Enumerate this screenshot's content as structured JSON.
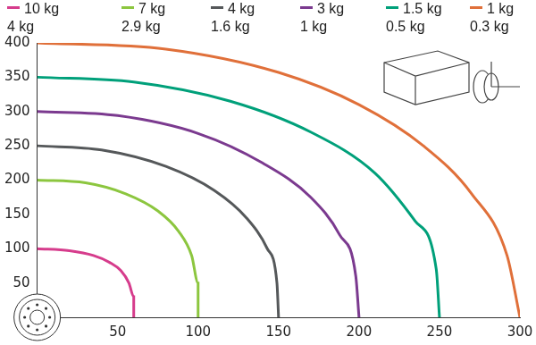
{
  "chart_data": {
    "type": "line",
    "xlim": [
      0,
      300
    ],
    "xticks": [
      50,
      100,
      150,
      200,
      250,
      300
    ],
    "ylim": [
      0,
      400
    ],
    "yticks": [
      50,
      100,
      150,
      200,
      250,
      300,
      350,
      400
    ],
    "grid": false,
    "legend": "top",
    "series": [
      {
        "name": "10 kg",
        "subname": "4 kg",
        "color": "#d63c8c",
        "x": [
          0,
          20,
          35,
          45,
          52,
          57,
          60,
          60
        ],
        "values": [
          100,
          97,
          90,
          80,
          68,
          50,
          30,
          0
        ]
      },
      {
        "name": "7 kg",
        "subname": "2.9 kg",
        "color": "#8cc63f",
        "x": [
          0,
          30,
          55,
          75,
          88,
          96,
          100,
          100
        ],
        "values": [
          200,
          196,
          180,
          155,
          125,
          90,
          50,
          0
        ]
      },
      {
        "name": "4 kg",
        "subname": "1.6 kg",
        "color": "#55585a",
        "x": [
          0,
          40,
          80,
          110,
          130,
          143,
          149,
          150
        ],
        "values": [
          250,
          244,
          220,
          185,
          145,
          100,
          50,
          0
        ]
      },
      {
        "name": "3 kg",
        "subname": "1 kg",
        "color": "#7b3a8f",
        "x": [
          0,
          50,
          100,
          140,
          170,
          188,
          198,
          200
        ],
        "values": [
          300,
          294,
          268,
          225,
          175,
          120,
          60,
          0
        ]
      },
      {
        "name": "1.5 kg",
        "subname": "0.5 kg",
        "color": "#00a07a",
        "x": [
          0,
          60,
          120,
          170,
          210,
          235,
          248,
          250
        ],
        "values": [
          350,
          343,
          315,
          270,
          210,
          140,
          70,
          0
        ]
      },
      {
        "name": "1 kg",
        "subname": "0.3 kg",
        "color": "#e0703a",
        "x": [
          0,
          80,
          150,
          200,
          240,
          270,
          292,
          300
        ],
        "values": [
          400,
          391,
          357,
          310,
          250,
          180,
          90,
          0
        ]
      }
    ]
  }
}
